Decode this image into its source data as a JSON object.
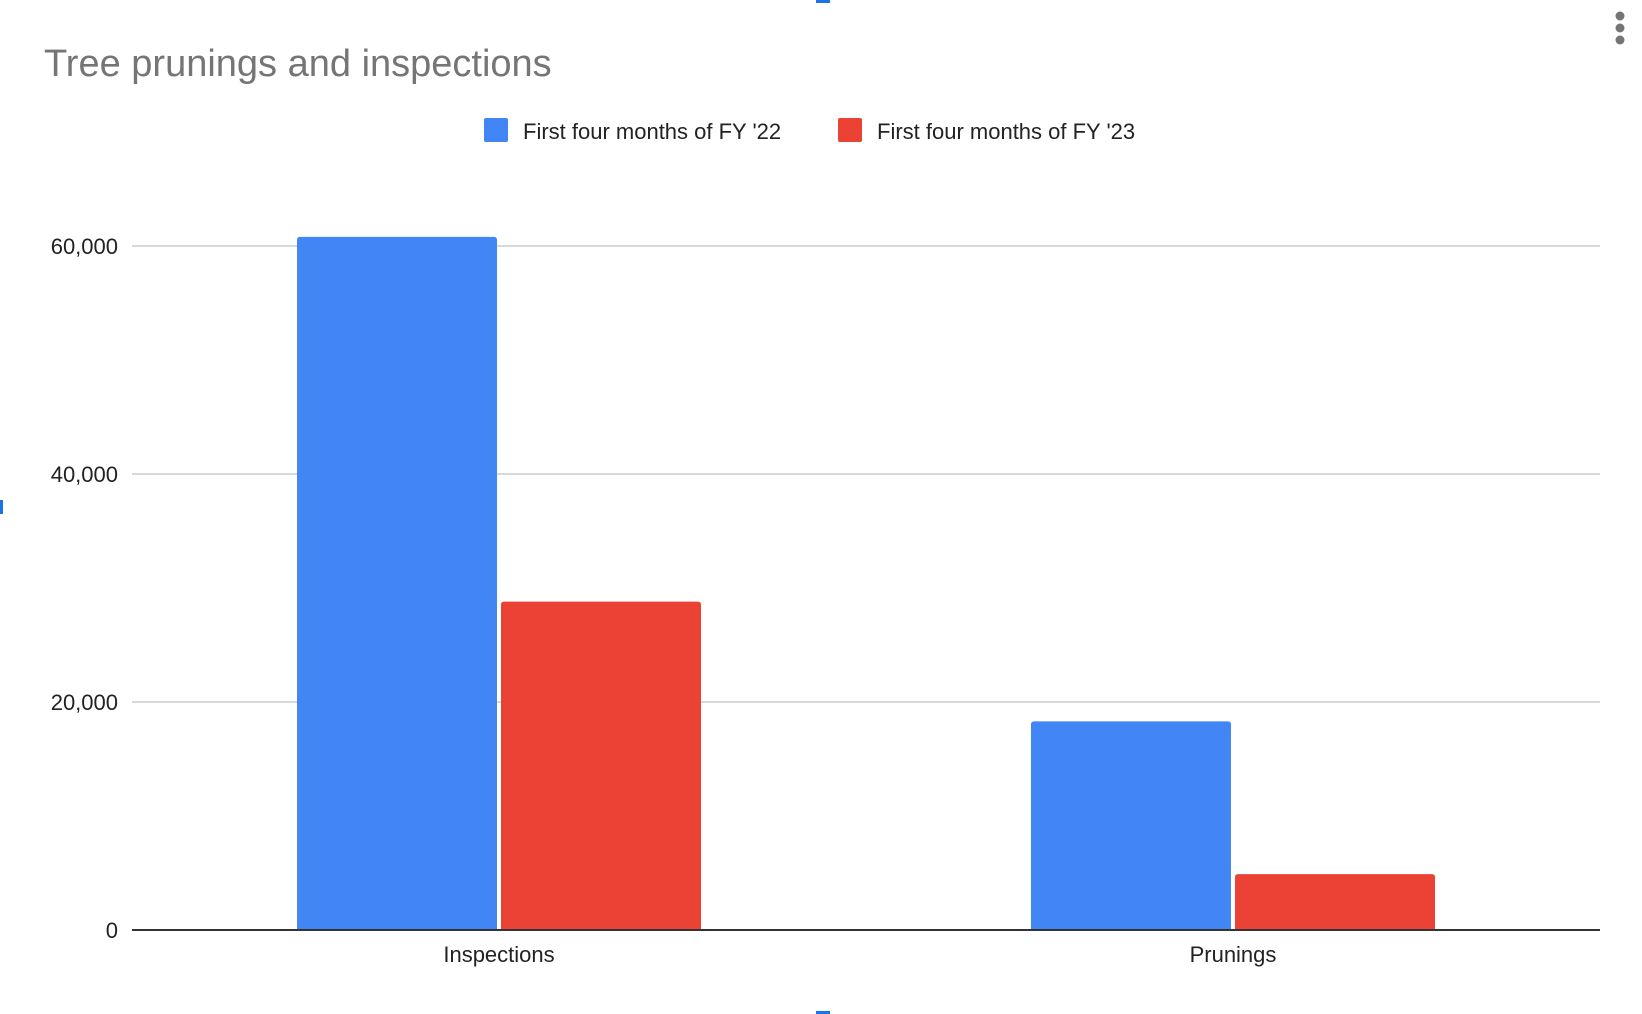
{
  "chart_data": {
    "type": "bar",
    "title": "Tree prunings and inspections",
    "categories": [
      "Inspections",
      "Prunings"
    ],
    "series": [
      {
        "name": "First four months of FY '22",
        "color": "#4285f4",
        "values": [
          60800,
          18300
        ]
      },
      {
        "name": "First four months of FY '23",
        "color": "#ea4335",
        "values": [
          28800,
          4900
        ]
      }
    ],
    "y_ticks": [
      {
        "value": 0,
        "label": "0"
      },
      {
        "value": 20000,
        "label": "20,000"
      },
      {
        "value": 40000,
        "label": "40,000"
      },
      {
        "value": 60000,
        "label": "60,000"
      }
    ],
    "ylim": [
      0,
      60000
    ],
    "xlabel": "",
    "ylabel": "",
    "grid": true,
    "legend_position": "top-center"
  },
  "menu": {
    "icon": "more-vertical-icon"
  }
}
